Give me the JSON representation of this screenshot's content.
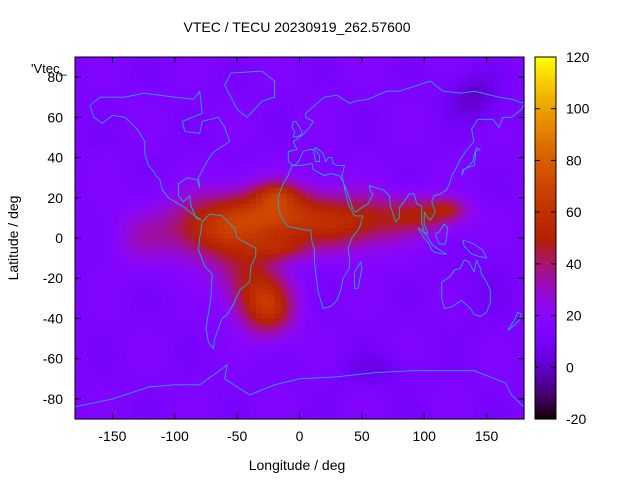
{
  "chart_data": {
    "type": "heatmap",
    "title": "VTEC / TECU 20230919_262.57600",
    "xlabel": "Longitude / deg",
    "ylabel": "Latitude / deg",
    "key_label": "'Vtec_",
    "xlim": [
      -180,
      180
    ],
    "ylim": [
      -90,
      90
    ],
    "x_ticks": [
      -150,
      -100,
      -50,
      0,
      50,
      100,
      150
    ],
    "y_ticks": [
      -80,
      -60,
      -40,
      -20,
      0,
      20,
      40,
      60,
      80
    ],
    "colorbar": {
      "min": -20,
      "max": 120,
      "ticks": [
        -20,
        0,
        20,
        40,
        60,
        80,
        100,
        120
      ],
      "palette": "gnuplot-pm3d (black-purple-red-orange-yellow)"
    },
    "grid_resolution_deg": [
      5,
      2.5
    ],
    "field": {
      "background": 14,
      "blobs": [
        {
          "lon": -70,
          "lat": 5,
          "amp": 42,
          "slon": 40,
          "slat": 16
        },
        {
          "lon": -20,
          "lat": 12,
          "amp": 45,
          "slon": 38,
          "slat": 14
        },
        {
          "lon": -18,
          "lat": 22,
          "amp": 20,
          "slon": 16,
          "slat": 6
        },
        {
          "lon": -15,
          "lat": -5,
          "amp": 22,
          "slon": 22,
          "slat": 6
        },
        {
          "lon": 40,
          "lat": 8,
          "amp": 38,
          "slon": 42,
          "slat": 14
        },
        {
          "lon": 100,
          "lat": 12,
          "amp": 30,
          "slon": 32,
          "slat": 9
        },
        {
          "lon": 120,
          "lat": 15,
          "amp": 16,
          "slon": 14,
          "slat": 5
        },
        {
          "lon": -25,
          "lat": -35,
          "amp": 40,
          "slon": 22,
          "slat": 14
        },
        {
          "lon": -40,
          "lat": -20,
          "amp": 28,
          "slon": 25,
          "slat": 16
        },
        {
          "lon": -130,
          "lat": 0,
          "amp": 12,
          "slon": 22,
          "slat": 14
        },
        {
          "lon": 140,
          "lat": 70,
          "amp": -14,
          "slon": 20,
          "slat": 12
        },
        {
          "lon": 60,
          "lat": -65,
          "amp": -8,
          "slon": 25,
          "slat": 8
        },
        {
          "lon": 150,
          "lat": -25,
          "amp": -4,
          "slon": 25,
          "slat": 20
        }
      ]
    }
  }
}
